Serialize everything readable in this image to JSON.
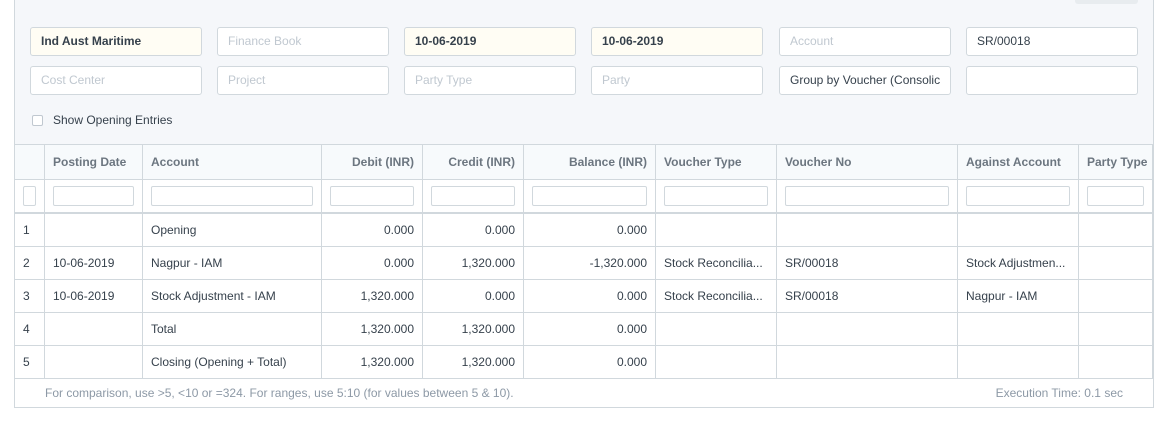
{
  "filters": [
    {
      "text": "Ind Aust Maritime",
      "placeholder": false,
      "highlight": true
    },
    {
      "text": "Finance Book",
      "placeholder": true,
      "highlight": false
    },
    {
      "text": "10-06-2019",
      "placeholder": false,
      "highlight": true
    },
    {
      "text": "10-06-2019",
      "placeholder": false,
      "highlight": true
    },
    {
      "text": "Account",
      "placeholder": true,
      "highlight": false
    },
    {
      "text": "SR/00018",
      "placeholder": false,
      "highlight": false
    },
    {
      "text": "Cost Center",
      "placeholder": true,
      "highlight": false
    },
    {
      "text": "Project",
      "placeholder": true,
      "highlight": false
    },
    {
      "text": "Party Type",
      "placeholder": true,
      "highlight": false
    },
    {
      "text": "Party",
      "placeholder": true,
      "highlight": false
    },
    {
      "text": "Group by Voucher (Consolic",
      "placeholder": false,
      "highlight": false
    }
  ],
  "checkbox": {
    "label": "Show Opening Entries"
  },
  "table": {
    "columns": [
      "Posting Date",
      "Account",
      "Debit (INR)",
      "Credit (INR)",
      "Balance (INR)",
      "Voucher Type",
      "Voucher No",
      "Against Account",
      "Party Type"
    ],
    "rows": [
      [
        "1",
        null,
        "Opening",
        "0.000",
        "0.000",
        "0.000",
        null,
        null,
        null,
        null
      ],
      [
        "2",
        "10-06-2019",
        "Nagpur - IAM",
        "0.000",
        "1,320.000",
        "-1,320.000",
        "Stock Reconcilia...",
        "SR/00018",
        "Stock Adjustmen...",
        null
      ],
      [
        "3",
        "10-06-2019",
        "Stock Adjustment - IAM",
        "1,320.000",
        "0.000",
        "0.000",
        "Stock Reconcilia...",
        "SR/00018",
        "Nagpur - IAM",
        null
      ],
      [
        "4",
        null,
        "Total",
        "1,320.000",
        "1,320.000",
        "0.000",
        null,
        null,
        null,
        null
      ],
      [
        "5",
        null,
        "Closing (Opening + Total)",
        "1,320.000",
        "1,320.000",
        "0.000",
        null,
        null,
        null,
        null
      ]
    ]
  },
  "footer": {
    "hint": "For comparison, use >5, <10 or =324. For ranges, use 5:10 (for values between 5 & 10).",
    "execution_time": "Execution Time: 0.1 sec"
  }
}
